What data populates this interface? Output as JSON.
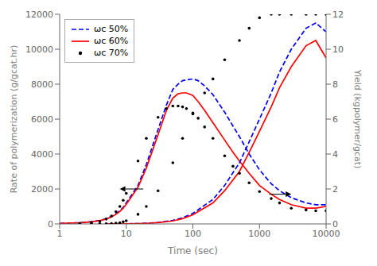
{
  "chart_data": {
    "type": "line",
    "xlabel": "Time (sec)",
    "ylabel": "Rate of polymerization (g/gcat.hr)",
    "y2label": "Yield (kgpolymer/gcat)",
    "log": "x",
    "grid": false,
    "legend": "upper left",
    "xlim": [
      1,
      10000
    ],
    "xticks": [
      1,
      10,
      100,
      1000,
      10000
    ],
    "ylim": [
      0,
      12000
    ],
    "yticks": [
      0,
      2000,
      4000,
      6000,
      8000,
      10000,
      12000
    ],
    "y2lim": [
      0,
      12
    ],
    "y2ticks": [
      0,
      2,
      4,
      6,
      8,
      10,
      12
    ],
    "series": [
      {
        "name": "ωc 50%",
        "color": "blue",
        "line_style": "dashed",
        "x": [
          1,
          2,
          3,
          4,
          5,
          6,
          7,
          8,
          9,
          10,
          15,
          20,
          30,
          40,
          50,
          60,
          70,
          80,
          100,
          120,
          150,
          200,
          300,
          400,
          500,
          700,
          1000,
          1500,
          2000,
          3000,
          5000,
          7000,
          10000
        ],
        "values": [
          30,
          70,
          130,
          200,
          300,
          430,
          580,
          750,
          950,
          1200,
          2200,
          3400,
          5400,
          6800,
          7700,
          8000,
          8200,
          8250,
          8300,
          8200,
          7900,
          7400,
          6400,
          5600,
          5000,
          4000,
          3100,
          2300,
          1900,
          1500,
          1200,
          1100,
          1100
        ]
      },
      {
        "name": "ωc 60%",
        "color": "red",
        "line_style": "solid",
        "x": [
          1,
          2,
          3,
          4,
          5,
          6,
          7,
          8,
          9,
          10,
          15,
          20,
          30,
          40,
          50,
          60,
          70,
          80,
          100,
          120,
          150,
          200,
          300,
          400,
          500,
          700,
          1000,
          1500,
          2000,
          3000,
          5000,
          7000,
          10000
        ],
        "values": [
          30,
          65,
          120,
          190,
          280,
          400,
          550,
          710,
          900,
          1130,
          2100,
          3200,
          5100,
          6500,
          7200,
          7450,
          7500,
          7500,
          7350,
          7000,
          6500,
          5800,
          4800,
          4100,
          3600,
          2900,
          2200,
          1700,
          1400,
          1100,
          900,
          900,
          1000
        ]
      },
      {
        "name": "ωc 70%",
        "type": "scatter",
        "marker": "dot",
        "color": "black",
        "x": [
          2,
          3,
          4,
          5,
          6,
          7,
          8,
          9,
          10,
          15,
          20,
          30,
          40,
          50,
          60,
          70,
          80,
          100,
          120,
          150,
          200,
          300,
          400,
          500,
          700,
          1000,
          1500,
          2000,
          3000,
          5000,
          7000,
          10000
        ],
        "values": [
          30,
          70,
          150,
          280,
          450,
          700,
          1000,
          1350,
          1750,
          3600,
          4900,
          6100,
          6600,
          6750,
          6750,
          6700,
          6600,
          6350,
          6050,
          5550,
          4900,
          3900,
          3300,
          2900,
          2350,
          1850,
          1450,
          1200,
          900,
          800,
          750,
          750
        ]
      },
      {
        "axis": "y2",
        "color": "blue",
        "line_style": "dashed",
        "x": [
          5,
          7,
          10,
          15,
          20,
          30,
          50,
          70,
          100,
          200,
          300,
          500,
          700,
          1000,
          1500,
          2000,
          3000,
          5000,
          7000,
          10000
        ],
        "values": [
          0.003,
          0.005,
          0.01,
          0.02,
          0.04,
          0.08,
          0.2,
          0.35,
          0.6,
          1.4,
          2.2,
          3.5,
          4.7,
          6.0,
          7.5,
          8.7,
          10.0,
          11.2,
          11.5,
          11.0
        ]
      },
      {
        "axis": "y2",
        "color": "red",
        "line_style": "solid",
        "x": [
          5,
          7,
          10,
          15,
          20,
          30,
          50,
          70,
          100,
          200,
          300,
          500,
          700,
          1000,
          1500,
          2000,
          3000,
          5000,
          7000,
          10000
        ],
        "values": [
          0.003,
          0.005,
          0.01,
          0.02,
          0.035,
          0.07,
          0.17,
          0.3,
          0.52,
          1.2,
          1.9,
          3.0,
          4.1,
          5.3,
          6.7,
          7.8,
          9.0,
          10.2,
          10.5,
          9.5
        ]
      },
      {
        "axis": "y2",
        "type": "scatter",
        "marker": "dot",
        "color": "black",
        "x": [
          3,
          4,
          5,
          6,
          7,
          8,
          9,
          10,
          15,
          20,
          30,
          50,
          70,
          100,
          150,
          200,
          300,
          500,
          700,
          1000,
          1500,
          2000,
          3000,
          5000,
          7000,
          10000
        ],
        "values": [
          0.002,
          0.005,
          0.01,
          0.02,
          0.04,
          0.07,
          0.12,
          0.18,
          0.55,
          1.0,
          1.9,
          3.5,
          4.9,
          6.3,
          7.5,
          8.3,
          9.4,
          10.5,
          11.2,
          11.8,
          12.0,
          12.0,
          12.0,
          12.0,
          12.0,
          12.0
        ]
      }
    ],
    "annotations": [
      {
        "type": "arrow",
        "x_from": 18,
        "x_to": 8,
        "y": 2000
      },
      {
        "type": "arrow",
        "x_from": 1400,
        "x_to": 3000,
        "y": 1700
      }
    ]
  }
}
